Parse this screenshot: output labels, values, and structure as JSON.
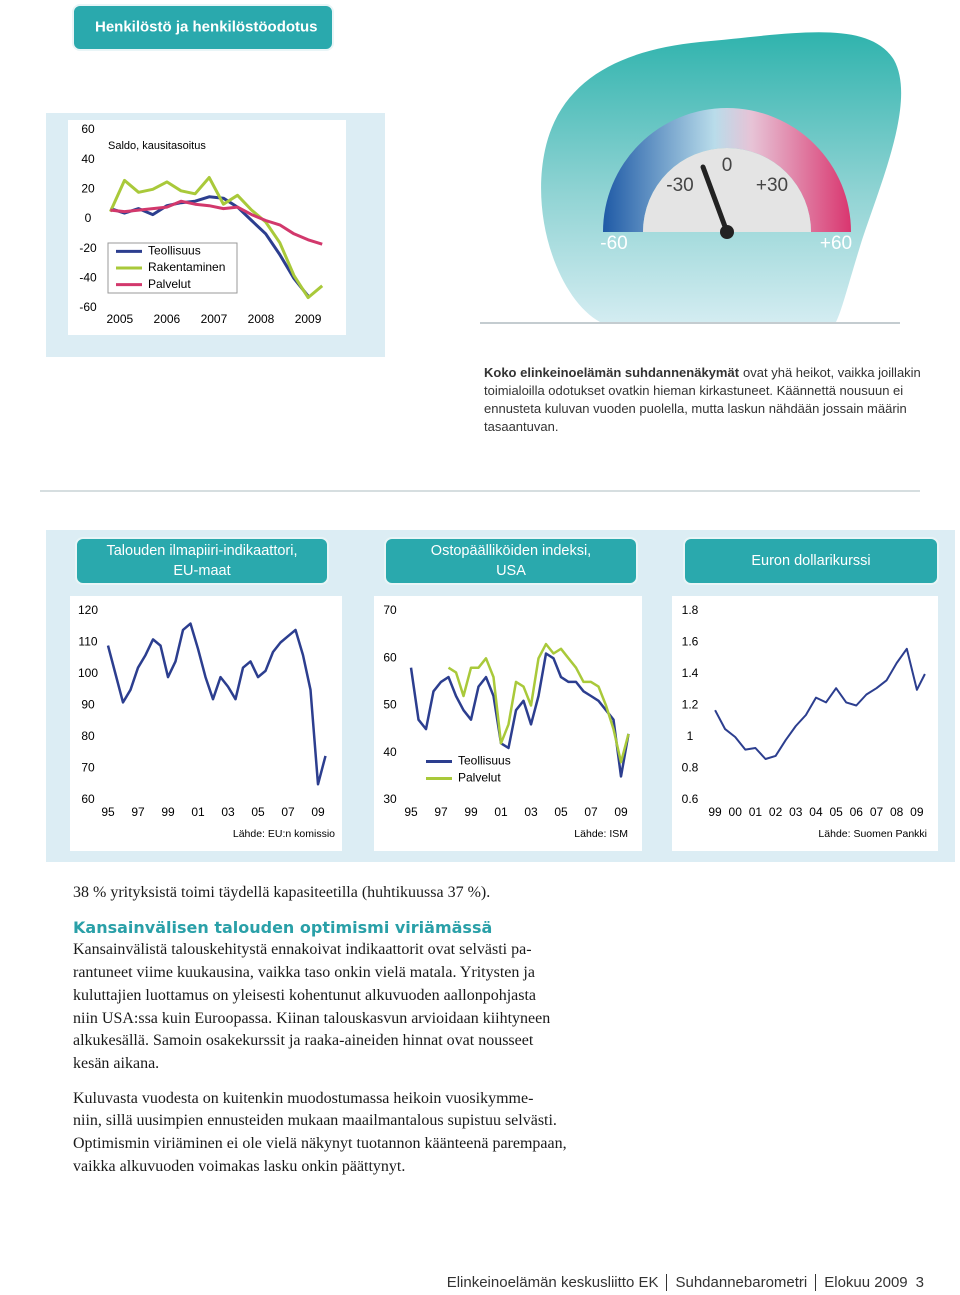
{
  "chart_data": [
    {
      "type": "line",
      "title": "Henkilöstö ja henkilöstöodotus",
      "subtitle": "Saldo, kausitasoitus",
      "x": [
        2004.8,
        2005.1,
        2005.4,
        2005.7,
        2006,
        2006.3,
        2006.6,
        2006.9,
        2007.2,
        2007.5,
        2007.8,
        2008.1,
        2008.4,
        2008.7,
        2009,
        2009.3
      ],
      "xlim": [
        2004.6,
        2009.7
      ],
      "xticks": [
        2005,
        2006,
        2007,
        2008,
        2009
      ],
      "ylim": [
        -60,
        60
      ],
      "yticks": [
        -60,
        -40,
        -20,
        0,
        20,
        40,
        60
      ],
      "grid": false,
      "series": [
        {
          "name": "Teollisuus",
          "color": "#2c3e8f",
          "values": [
            7,
            4,
            7,
            3,
            9,
            11,
            12,
            15,
            14,
            8,
            -1,
            -10,
            -24,
            -40,
            -52,
            null
          ]
        },
        {
          "name": "Rakentaminen",
          "color": "#a9c93a",
          "values": [
            5,
            26,
            18,
            20,
            25,
            19,
            17,
            28,
            10,
            16,
            6,
            -2,
            -16,
            -38,
            -53,
            -45
          ]
        },
        {
          "name": "Palvelut",
          "color": "#d2386c",
          "values": [
            6,
            5,
            6,
            7,
            8,
            12,
            10,
            9,
            7,
            8,
            3,
            -1,
            -4,
            -10,
            -14,
            -17
          ]
        }
      ]
    },
    {
      "type": "line",
      "title": [
        "Talouden ilmapiiri-indikaattori,",
        "EU-maat"
      ],
      "source": "Lähde: EU:n komissio",
      "x": [
        1995,
        1995.5,
        1996,
        1996.5,
        1997,
        1997.5,
        1998,
        1998.5,
        1999,
        1999.5,
        2000,
        2000.5,
        2001,
        2001.5,
        2002,
        2002.5,
        2003,
        2003.5,
        2004,
        2004.5,
        2005,
        2005.5,
        2006,
        2006.5,
        2007,
        2007.5,
        2008,
        2008.5,
        2009,
        2009.5
      ],
      "xlim": [
        1994.6,
        2009.9
      ],
      "xticks": [
        {
          "value": 1995,
          "label": "95"
        },
        {
          "value": 1997,
          "label": "97"
        },
        {
          "value": 1999,
          "label": "99"
        },
        {
          "value": 2001,
          "label": "01"
        },
        {
          "value": 2003,
          "label": "03"
        },
        {
          "value": 2005,
          "label": "05"
        },
        {
          "value": 2007,
          "label": "07"
        },
        {
          "value": 2009,
          "label": "09"
        }
      ],
      "ylim": [
        60,
        120
      ],
      "yticks": [
        60,
        70,
        80,
        90,
        100,
        110,
        120
      ],
      "grid": false,
      "series": [
        {
          "color": "#2c3e8f",
          "values": [
            109,
            100,
            91,
            95,
            102,
            106,
            111,
            109,
            99,
            104,
            114,
            116,
            108,
            99,
            92,
            99,
            96,
            92,
            102,
            104,
            99,
            101,
            107,
            110,
            112,
            114,
            106,
            95,
            65,
            74
          ]
        }
      ]
    },
    {
      "type": "line",
      "title": [
        "Ostopäälliköiden indeksi,",
        "USA"
      ],
      "source": "Lähde: ISM",
      "x": [
        1995,
        1995.5,
        1996,
        1996.5,
        1997,
        1997.5,
        1998,
        1998.5,
        1999,
        1999.5,
        2000,
        2000.5,
        2001,
        2001.5,
        2002,
        2002.5,
        2003,
        2003.5,
        2004,
        2004.5,
        2005,
        2005.5,
        2006,
        2006.5,
        2007,
        2007.5,
        2008,
        2008.5,
        2009,
        2009.5
      ],
      "xlim": [
        1994.6,
        2009.9
      ],
      "xticks": [
        {
          "value": 1995,
          "label": "95"
        },
        {
          "value": 1997,
          "label": "97"
        },
        {
          "value": 1999,
          "label": "99"
        },
        {
          "value": 2001,
          "label": "01"
        },
        {
          "value": 2003,
          "label": "03"
        },
        {
          "value": 2005,
          "label": "05"
        },
        {
          "value": 2007,
          "label": "07"
        },
        {
          "value": 2009,
          "label": "09"
        }
      ],
      "ylim": [
        30,
        70
      ],
      "yticks": [
        30,
        40,
        50,
        60,
        70
      ],
      "grid": false,
      "series": [
        {
          "name": "Teollisuus",
          "color": "#2c3e8f",
          "values": [
            58,
            47,
            45,
            53,
            55,
            56,
            52,
            49,
            47,
            54,
            56,
            52,
            42,
            41,
            49,
            51,
            46,
            52,
            61,
            60,
            56,
            55,
            55,
            53,
            52,
            51,
            49,
            47,
            35,
            44
          ]
        },
        {
          "name": "Palvelut",
          "color": "#a9c93a",
          "values": [
            null,
            null,
            null,
            null,
            null,
            58,
            57,
            52,
            58,
            58,
            60,
            56,
            42,
            46,
            55,
            54,
            50,
            60,
            63,
            61,
            62,
            60,
            58,
            55,
            55,
            54,
            50,
            45,
            38,
            44
          ]
        }
      ]
    },
    {
      "type": "line",
      "title": [
        "Euron dollarikurssi"
      ],
      "source": "Lähde: Suomen Pankki",
      "x": [
        1999,
        1999.5,
        2000,
        2000.5,
        2001,
        2001.5,
        2002,
        2002.5,
        2003,
        2003.5,
        2004,
        2004.5,
        2005,
        2005.5,
        2006,
        2006.5,
        2007,
        2007.5,
        2008,
        2008.5,
        2009,
        2009.4
      ],
      "xlim": [
        1998.7,
        2009.8
      ],
      "xticks": [
        {
          "value": 1999,
          "label": "99"
        },
        {
          "value": 2000,
          "label": "00"
        },
        {
          "value": 2001,
          "label": "01"
        },
        {
          "value": 2002,
          "label": "02"
        },
        {
          "value": 2003,
          "label": "03"
        },
        {
          "value": 2004,
          "label": "04"
        },
        {
          "value": 2005,
          "label": "05"
        },
        {
          "value": 2006,
          "label": "06"
        },
        {
          "value": 2007,
          "label": "07"
        },
        {
          "value": 2008,
          "label": "08"
        },
        {
          "value": 2009,
          "label": "09"
        }
      ],
      "ylim": [
        0.6,
        1.8
      ],
      "yticks": [
        0.6,
        0.8,
        1,
        1.2,
        1.4,
        1.6,
        1.8
      ],
      "grid": false,
      "series": [
        {
          "color": "#2c3e8f",
          "values": [
            1.17,
            1.05,
            1.0,
            0.92,
            0.93,
            0.86,
            0.88,
            0.98,
            1.07,
            1.14,
            1.25,
            1.22,
            1.31,
            1.22,
            1.2,
            1.27,
            1.31,
            1.36,
            1.47,
            1.56,
            1.3,
            1.4
          ]
        }
      ]
    }
  ],
  "gauge": {
    "labels": [
      "-60",
      "-30",
      "0",
      "+30",
      "+60"
    ]
  },
  "intro": {
    "lead": "Koko elinkeinoelämän suhdannenäkymät",
    "lines": [
      "ovat yhä heikot, vaikka joillakin",
      "toimialoilla odotukset ovatkin hieman kirkastuneet. Käännettä nousuun ei",
      "ennusteta kuluvan vuoden puolella, mutta laskun nähdään jossain määrin",
      "tasaantuvan."
    ]
  },
  "body": {
    "capacity": "38 % yrityksistä toimi täydellä kapasiteetilla (huhtikuussa 37 %).",
    "heading": "Kansainvälisen talouden optimismi viriämässä",
    "paragraphs": [
      [
        "Kansainvälistä talouskehitystä ennakoivat indikaattorit ovat selvästi pa-",
        "rantuneet viime kuukausina, vaikka taso onkin vielä matala. Yritysten ja",
        "kuluttajien luottamus on yleisesti kohentunut alkuvuoden aallonpohjasta",
        "niin USA:ssa kuin Euroopassa. Kiinan talouskasvun arvioidaan kiihtyneen",
        "alkukesällä. Samoin osakekurssit ja raaka-aineiden hinnat ovat nousseet",
        "kesän aikana."
      ],
      [
        "Kuluvasta vuodesta on kuitenkin muodostumassa heikoin vuosikymme-",
        "niin, sillä uusimpien ennusteiden mukaan maailmantalous supistuu selvästi.",
        "Optimismin viriäminen ei ole vielä näkynyt tuotannon käänteenä parempaan,",
        "vaikka alkuvuoden voimakas lasku onkin päättynyt."
      ]
    ]
  },
  "footer": {
    "items": [
      "Elinkeinoelämän keskusliitto EK",
      "Suhdannebarometri",
      "Elokuu 2009"
    ],
    "page": "3"
  }
}
